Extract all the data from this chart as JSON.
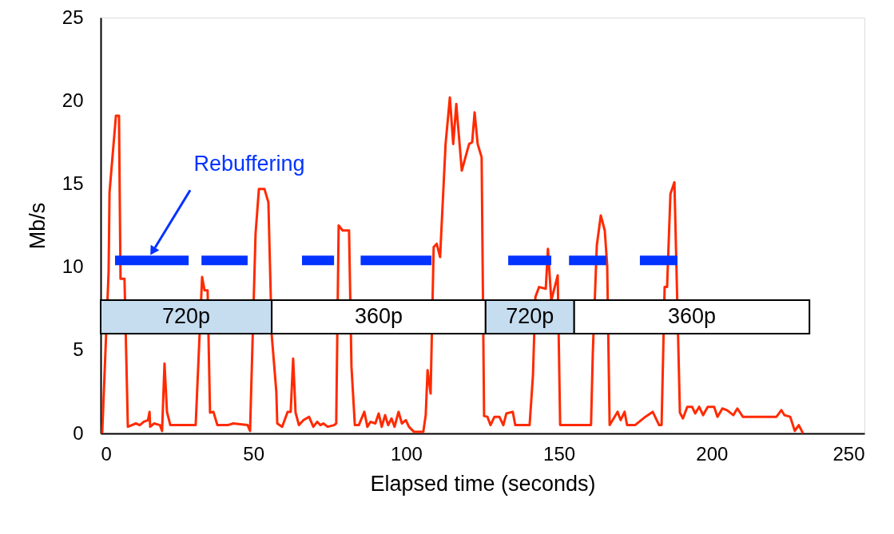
{
  "chart_data": {
    "type": "line",
    "xlabel": "Elapsed time (seconds)",
    "ylabel": "Mb/s",
    "xlim": [
      0,
      250
    ],
    "ylim": [
      0,
      25
    ],
    "xticks": [
      0,
      50,
      100,
      150,
      200,
      250
    ],
    "yticks": [
      0,
      5,
      10,
      15,
      20,
      25
    ],
    "grid": false,
    "marker": "none",
    "line_style": "solid",
    "series": [
      {
        "color": "#ff2a00",
        "x": [
          0.5,
          2.6,
          2.9,
          5,
          6,
          6.5,
          7.8,
          8.9,
          10.2,
          11.5,
          12.8,
          14.1,
          15.5,
          16,
          16.2,
          17.5,
          19.4,
          20.1,
          20.9,
          21.7,
          22.8,
          25.1,
          27.2,
          31.1,
          33.2,
          34,
          35,
          35.8,
          36.9,
          38.2,
          41.6,
          43.4,
          48.1,
          48.9,
          50.7,
          51.8,
          53.6,
          54.9,
          56,
          57.5,
          57.8,
          59.4,
          61.2,
          62.2,
          63,
          63.8,
          64.9,
          66.4,
          68.2,
          69.6,
          70.9,
          71.9,
          72.9,
          74.3,
          76.4,
          77.1,
          77.9,
          79.2,
          81.3,
          82.1,
          83.2,
          84.5,
          86.3,
          87.3,
          88.3,
          89.9,
          91,
          92,
          93.1,
          94.1,
          95.2,
          96.2,
          97.5,
          98.6,
          99.9,
          100.9,
          102.5,
          105.6,
          106.4,
          107,
          108,
          109,
          110,
          111.1,
          112.9,
          114.3,
          115.4,
          116.4,
          118.2,
          120.6,
          121.6,
          122.4,
          123.4,
          124.7,
          125.5,
          126.6,
          127.6,
          128.9,
          130.5,
          131.8,
          132.8,
          134.9,
          135.7,
          140.4,
          141.5,
          142.3,
          143.5,
          145.7,
          146.4,
          147.5,
          149.6,
          150.4,
          155.3,
          160.5,
          161.1,
          162.4,
          163.7,
          165,
          165.8,
          166.6,
          169.2,
          170.2,
          171.5,
          172.3,
          174.9,
          178.3,
          180.7,
          182.8,
          183.6,
          184.6,
          185.4,
          186.5,
          187.8,
          189.6,
          190.6,
          192,
          193.6,
          194.6,
          195.9,
          197.2,
          198.7,
          200.8,
          201.9,
          203.5,
          205,
          207.1,
          208.4,
          210.2,
          212.3,
          215.5,
          219.4,
          221.2,
          222.8,
          223.8,
          225.7,
          227.2,
          228.5,
          229.9
        ],
        "values": [
          0,
          9.7,
          14.5,
          19.1,
          19.1,
          9.3,
          9.3,
          0.4,
          0.5,
          0.6,
          0.5,
          0.7,
          0.8,
          1.3,
          0.4,
          0.6,
          0.5,
          0.15,
          4.2,
          1.3,
          0.5,
          0.5,
          0.5,
          0.5,
          9.4,
          8.6,
          8.6,
          1.25,
          1.3,
          0.5,
          0.5,
          0.6,
          0.5,
          0.15,
          12,
          14.7,
          14.7,
          13.9,
          5.9,
          2.5,
          0.6,
          0.4,
          1.3,
          1.3,
          4.5,
          1.25,
          0.5,
          0.8,
          1,
          0.4,
          0.7,
          0.5,
          0.6,
          0.4,
          0.5,
          0.6,
          12.5,
          12.2,
          12.2,
          4,
          0.5,
          0.5,
          1.3,
          0.4,
          0.7,
          0.6,
          1.2,
          0.4,
          1.1,
          0.5,
          0.9,
          0.4,
          1.3,
          0.6,
          0.8,
          0.4,
          0.1,
          0.1,
          1.1,
          3.8,
          2.4,
          11.2,
          11.4,
          10.6,
          17.4,
          20.2,
          17.4,
          19.8,
          15.8,
          17.4,
          17.5,
          19.3,
          17.4,
          16.6,
          1.05,
          1,
          0.5,
          1,
          1,
          0.5,
          1.2,
          1.3,
          0.5,
          0.5,
          3.5,
          8.2,
          8.8,
          8.7,
          11.1,
          8,
          9.5,
          0.5,
          0.5,
          0.5,
          4.9,
          11.3,
          13.1,
          12.2,
          10.1,
          0.5,
          1.3,
          0.8,
          1.3,
          0.5,
          0.5,
          1,
          1.3,
          0.5,
          0.5,
          8.8,
          8.8,
          14.4,
          15.1,
          1.25,
          0.9,
          1.6,
          1.6,
          1.2,
          1.6,
          1.1,
          1.6,
          1.6,
          1,
          1.5,
          1.4,
          1.1,
          1.5,
          1,
          1,
          1,
          1,
          1,
          1.4,
          1.1,
          1,
          0.15,
          0.5,
          0
        ]
      },
      {
        "name": "Rebuffering",
        "color": "#0433ff",
        "x": [
          4.7,
          28.8,
          30,
          33,
          48.1,
          50,
          65.9,
          76.4,
          80,
          85.1,
          108.3,
          120,
          133.4,
          147.5,
          150,
          153.3,
          165.5,
          170,
          176.5,
          188.8
        ],
        "values": [
          10.4,
          10.4,
          null,
          10.4,
          10.4,
          null,
          10.4,
          10.4,
          null,
          10.4,
          10.4,
          null,
          10.4,
          10.4,
          null,
          10.4,
          10.4,
          null,
          10.4,
          10.4
        ]
      }
    ],
    "bands": [
      {
        "axis": "x",
        "from": 0,
        "to": 56,
        "label": "720p",
        "color": "#c6dcef"
      },
      {
        "axis": "x",
        "from": 56,
        "to": 126,
        "label": "360p",
        "color": "#ffffff"
      },
      {
        "axis": "x",
        "from": 126,
        "to": 155,
        "label": "720p",
        "color": "#c6dcef"
      },
      {
        "axis": "x",
        "from": 155,
        "to": 232,
        "label": "360p",
        "color": "#ffffff"
      }
    ]
  }
}
